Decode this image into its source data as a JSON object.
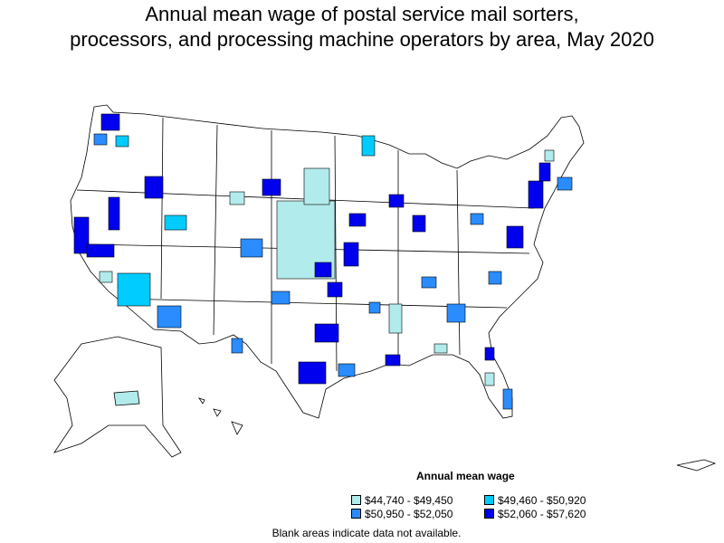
{
  "title_line1": "Annual mean wage of postal service mail sorters,",
  "title_line2": "processors, and processing machine operators by area, May 2020",
  "legend": {
    "title": "Annual mean wage",
    "items": [
      {
        "label": "$44,740 - $49,450",
        "color": "#b2ebeb"
      },
      {
        "label": "$49,460 - $50,920",
        "color": "#00ccff"
      },
      {
        "label": "$50,950 - $52,050",
        "color": "#2a8cff"
      },
      {
        "label": "$52,060 - $57,620",
        "color": "#0000ee"
      }
    ]
  },
  "footnote": "Blank areas indicate data not available.",
  "colors": {
    "blank": "#ffffff",
    "border": "#000000"
  }
}
